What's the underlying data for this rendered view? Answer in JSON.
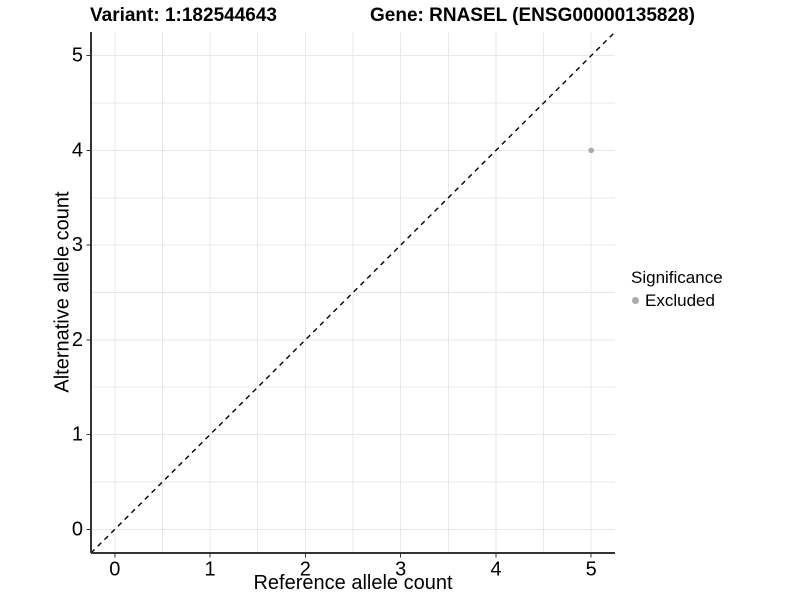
{
  "figure": {
    "background": "#ffffff"
  },
  "chart_data": {
    "type": "scatter",
    "titles": {
      "left": "Variant: 1:182544643",
      "right": "Gene: RNASEL (ENSG00000135828)"
    },
    "xlabel": "Reference allele count",
    "ylabel": "Alternative allele count",
    "xlim": [
      -0.25,
      5.25
    ],
    "ylim": [
      -0.25,
      5.25
    ],
    "x_ticks": [
      0,
      1,
      2,
      3,
      4,
      5
    ],
    "y_ticks": [
      0,
      1,
      2,
      3,
      4,
      5
    ],
    "grid": {
      "show": true,
      "minor_step": 0.5,
      "color": "#e8e8e8",
      "width": 1
    },
    "axis": {
      "color": "#333333",
      "line_width": 1.8,
      "tick_length": 4.5,
      "tick_label_size": 20
    },
    "reference_line": {
      "kind": "identity",
      "from": -0.25,
      "to": 5.25,
      "color": "#000000",
      "dash": "5,4.5",
      "width": 1.4
    },
    "series": [
      {
        "name": "Excluded",
        "color": "#aaaaaa",
        "point_radius": 2.8,
        "points": [
          [
            5,
            4
          ]
        ]
      }
    ],
    "legend": {
      "title": "Significance",
      "position": "right",
      "entries": [
        {
          "label": "Excluded",
          "color": "#aaaaaa"
        }
      ]
    },
    "text_color": "#000000"
  }
}
